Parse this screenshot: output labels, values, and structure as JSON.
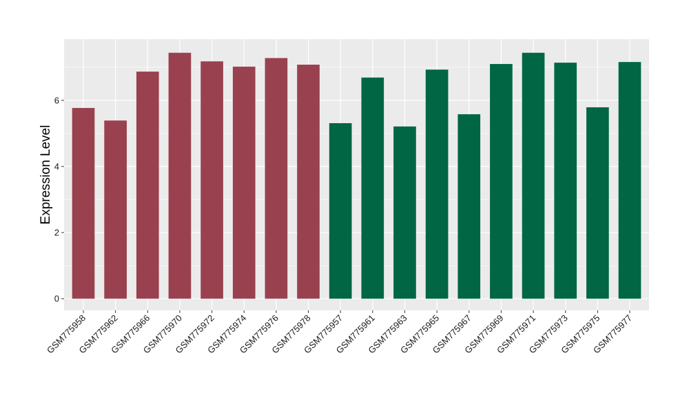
{
  "chart_data": {
    "type": "bar",
    "title": "",
    "xlabel": "",
    "ylabel": "Expression Level",
    "ylim": [
      -0.35,
      7.85
    ],
    "yticks": [
      0,
      2,
      4,
      6
    ],
    "grid": true,
    "legend": "none",
    "colors": {
      "panel": "#EBEBEB",
      "grid_major": "#FFFFFF",
      "group_a": "#9A414F",
      "group_b": "#006644"
    },
    "categories": [
      "GSM775958",
      "GSM775962",
      "GSM775966",
      "GSM775970",
      "GSM775972",
      "GSM775974",
      "GSM775976",
      "GSM775978",
      "GSM775957",
      "GSM775961",
      "GSM775963",
      "GSM775965",
      "GSM775967",
      "GSM775969",
      "GSM775971",
      "GSM775973",
      "GSM775975",
      "GSM775977"
    ],
    "values": [
      5.77,
      5.39,
      6.87,
      7.44,
      7.18,
      7.02,
      7.28,
      7.08,
      5.31,
      6.69,
      5.21,
      6.93,
      5.58,
      7.1,
      7.44,
      7.14,
      5.79,
      7.16
    ],
    "bar_colors": [
      "#9A414F",
      "#9A414F",
      "#9A414F",
      "#9A414F",
      "#9A414F",
      "#9A414F",
      "#9A414F",
      "#9A414F",
      "#006644",
      "#006644",
      "#006644",
      "#006644",
      "#006644",
      "#006644",
      "#006644",
      "#006644",
      "#006644",
      "#006644"
    ]
  }
}
